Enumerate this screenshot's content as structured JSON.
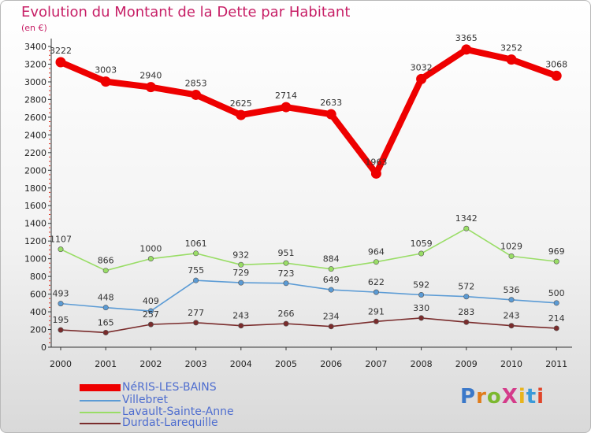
{
  "title": "Evolution du Montant de la Dette par Habitant",
  "unit": "(en €)",
  "logo": "ProXiti",
  "chart_data": {
    "type": "line",
    "title": "Evolution du Montant de la Dette par Habitant",
    "ylabel": "(en €)",
    "x": [
      "2000",
      "2001",
      "2002",
      "2003",
      "2004",
      "2005",
      "2006",
      "2007",
      "2008",
      "2009",
      "2010",
      "2011"
    ],
    "yticks": [
      "0",
      "200",
      "400",
      "600",
      "800",
      "1000",
      "1200",
      "1400",
      "1600",
      "1800",
      "2000",
      "2200",
      "2400",
      "2600",
      "2800",
      "3000",
      "3200",
      "3400"
    ],
    "ylim": [
      0,
      3400
    ],
    "grid": false,
    "legend_position": "bottom-left",
    "series": [
      {
        "name": "NéRIS-LES-BAINS",
        "color": "#ee0000",
        "values": [
          3222,
          3003,
          2940,
          2853,
          2625,
          2714,
          2633,
          1963,
          3032,
          3365,
          3252,
          3068
        ],
        "labels": [
          "3222",
          "3003",
          "2940",
          "2853",
          "2625",
          "2714",
          "2633",
          "1963",
          "3032",
          "3365",
          "3252",
          "3068"
        ]
      },
      {
        "name": "Villebret",
        "color": "#5b9bd5",
        "values": [
          493,
          448,
          409,
          755,
          729,
          723,
          649,
          622,
          592,
          572,
          536,
          500
        ],
        "labels": [
          "493",
          "448",
          "409",
          "755",
          "729",
          "723",
          "649",
          "622",
          "592",
          "572",
          "536",
          "500"
        ]
      },
      {
        "name": "Lavault-Sainte-Anne",
        "color": "#99dd66",
        "values": [
          1107,
          866,
          1000,
          1061,
          932,
          951,
          884,
          964,
          1059,
          1342,
          1029,
          969
        ],
        "labels": [
          "1107",
          "866",
          "1000",
          "1061",
          "932",
          "951",
          "884",
          "964",
          "1059",
          "1342",
          "1029",
          "969"
        ]
      },
      {
        "name": "Durdat-Larequille",
        "color": "#7a2c2c",
        "values": [
          195,
          165,
          257,
          277,
          243,
          266,
          234,
          291,
          330,
          283,
          243,
          214
        ],
        "labels": [
          "195",
          "165",
          "257",
          "277",
          "243",
          "266",
          "234",
          "291",
          "330",
          "283",
          "243",
          "214"
        ]
      }
    ]
  }
}
